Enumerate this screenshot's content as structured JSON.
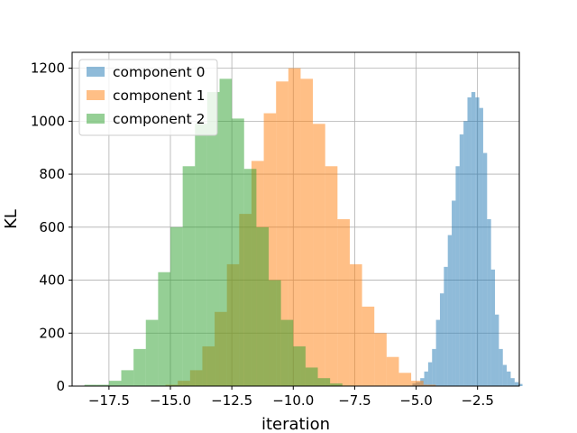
{
  "chart_data": {
    "type": "histogram",
    "title": "",
    "xlabel": "iteration",
    "ylabel": "KL",
    "xlim": [
      -19.0,
      -0.8
    ],
    "ylim": [
      0,
      1260
    ],
    "xticks": [
      -17.5,
      -15.0,
      -12.5,
      -10.0,
      -7.5,
      -5.0,
      -2.5
    ],
    "xtick_labels": [
      "−17.5",
      "−15.0",
      "−12.5",
      "−10.0",
      "−7.5",
      "−5.0",
      "−2.5"
    ],
    "yticks": [
      0,
      200,
      400,
      600,
      800,
      1000,
      1200
    ],
    "ytick_labels": [
      "0",
      "200",
      "400",
      "600",
      "800",
      "1000",
      "1200"
    ],
    "grid": true,
    "legend_position": "top-left",
    "series": [
      {
        "name": "component 0",
        "color": "#1f77b4",
        "opacity": 0.5,
        "bin_start": -5.15,
        "bin_width": 0.16,
        "counts": [
          10,
          15,
          30,
          55,
          90,
          140,
          250,
          350,
          450,
          570,
          700,
          830,
          950,
          1000,
          1090,
          1110,
          1090,
          1050,
          880,
          630,
          440,
          270,
          140,
          80,
          55,
          30,
          15,
          8
        ]
      },
      {
        "name": "component 1",
        "color": "#ff7f0e",
        "opacity": 0.5,
        "bin_start": -15.2,
        "bin_width": 0.5,
        "counts": [
          5,
          20,
          60,
          150,
          280,
          460,
          650,
          850,
          1030,
          1150,
          1200,
          1160,
          990,
          830,
          630,
          460,
          300,
          200,
          110,
          50,
          20,
          5
        ]
      },
      {
        "name": "component 2",
        "color": "#2ca02c",
        "opacity": 0.5,
        "bin_start": -18.5,
        "bin_width": 0.5,
        "counts": [
          5,
          5,
          20,
          60,
          140,
          250,
          430,
          600,
          830,
          990,
          1110,
          1160,
          1010,
          820,
          600,
          400,
          250,
          150,
          70,
          30,
          10,
          2
        ]
      }
    ]
  }
}
